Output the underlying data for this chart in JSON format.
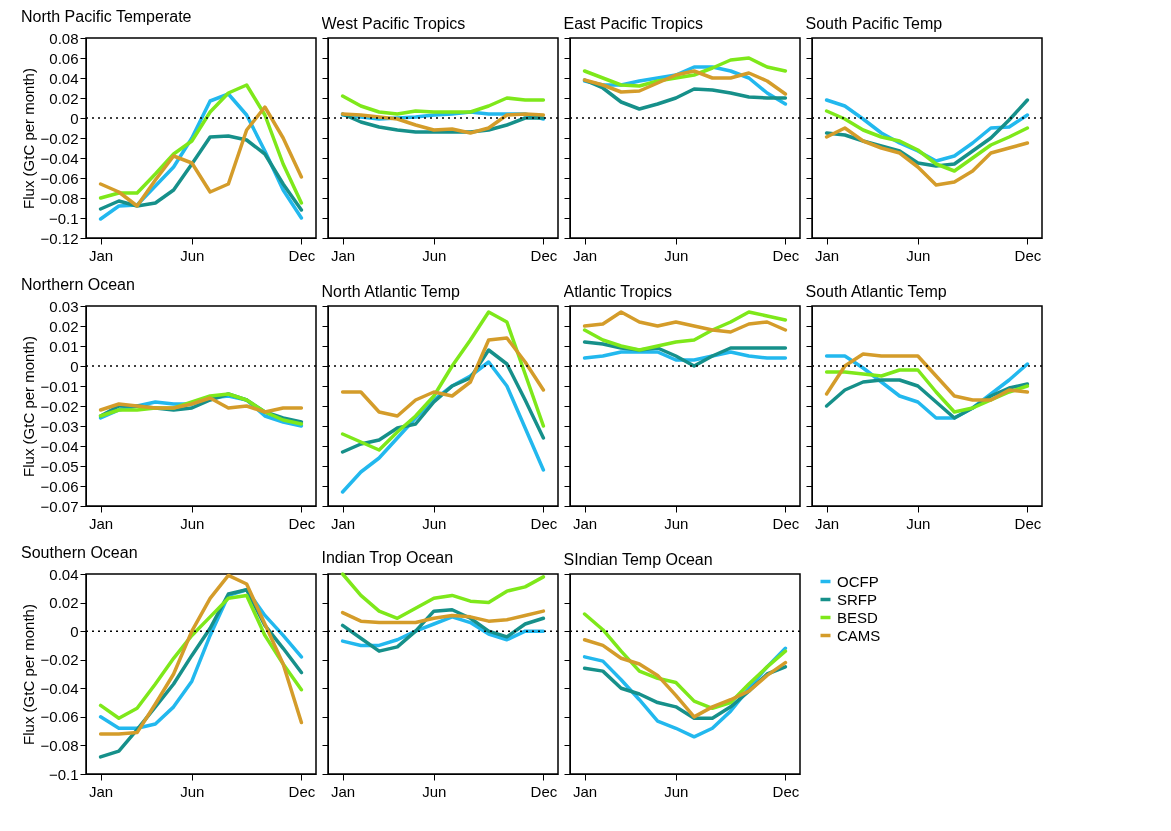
{
  "chart_data": [
    {
      "type": "line",
      "title": "North Pacific Temperate",
      "ylabel": "Flux (GtC per month)",
      "categories": [
        "Jan",
        null,
        null,
        null,
        null,
        "Jun",
        null,
        null,
        null,
        null,
        null,
        "Dec"
      ],
      "ylim": [
        -0.12,
        0.08
      ],
      "yticks": [
        -0.12,
        -0.1,
        -0.08,
        -0.06,
        -0.04,
        -0.02,
        0,
        0.02,
        0.04,
        0.06,
        0.08
      ],
      "ref_lines": [
        {
          "axis": "y",
          "value": 0,
          "line_style": "dotted"
        }
      ],
      "series": [
        {
          "color": "#22b8ee",
          "values": [
            -0.101,
            -0.088,
            -0.087,
            -0.068,
            -0.049,
            -0.02,
            0.017,
            0.024,
            0.003,
            -0.033,
            -0.072,
            -0.1
          ]
        },
        {
          "color": "#16908a",
          "values": [
            -0.091,
            -0.083,
            -0.088,
            -0.085,
            -0.072,
            -0.046,
            -0.019,
            -0.018,
            -0.022,
            -0.036,
            -0.066,
            -0.092
          ]
        },
        {
          "color": "#7ee81a",
          "values": [
            -0.08,
            -0.075,
            -0.075,
            -0.056,
            -0.036,
            -0.023,
            0.006,
            0.025,
            0.033,
            0.003,
            -0.046,
            -0.085
          ]
        },
        {
          "color": "#d49c2a",
          "values": [
            -0.066,
            -0.074,
            -0.088,
            -0.062,
            -0.038,
            -0.045,
            -0.074,
            -0.066,
            -0.012,
            0.011,
            -0.02,
            -0.059
          ]
        }
      ]
    },
    {
      "type": "line",
      "title": "West Pacific Tropics",
      "categories": [
        "Jan",
        null,
        null,
        null,
        null,
        "Jun",
        null,
        null,
        null,
        null,
        null,
        "Dec"
      ],
      "ylim": [
        -0.12,
        0.08
      ],
      "yticks": [
        -0.12,
        -0.1,
        -0.08,
        -0.06,
        -0.04,
        -0.02,
        0,
        0.02,
        0.04,
        0.06,
        0.08
      ],
      "tick_labels": "x",
      "ref_lines": [
        {
          "axis": "y",
          "value": 0,
          "line_style": "dotted"
        }
      ],
      "series": [
        {
          "color": "#22b8ee",
          "values": [
            0.003,
            0.001,
            -0.001,
            0,
            0.001,
            0.003,
            0.004,
            0.006,
            0.004,
            0.004,
            0.004,
            -0.001
          ]
        },
        {
          "color": "#16908a",
          "values": [
            0.004,
            -0.004,
            -0.009,
            -0.012,
            -0.014,
            -0.014,
            -0.014,
            -0.014,
            -0.012,
            -0.007,
            0,
            0
          ]
        },
        {
          "color": "#7ee81a",
          "values": [
            0.022,
            0.012,
            0.006,
            0.004,
            0.007,
            0.006,
            0.006,
            0.006,
            0.012,
            0.02,
            0.018,
            0.018
          ]
        },
        {
          "color": "#d49c2a",
          "values": [
            0.004,
            0.003,
            0.001,
            -0.001,
            -0.007,
            -0.012,
            -0.011,
            -0.015,
            -0.01,
            0.003,
            0.004,
            0.003
          ]
        }
      ]
    },
    {
      "type": "line",
      "title": "East Pacific Tropics",
      "categories": [
        "Jan",
        null,
        null,
        null,
        null,
        "Jun",
        null,
        null,
        null,
        null,
        null,
        "Dec"
      ],
      "ylim": [
        -0.12,
        0.08
      ],
      "yticks": [
        -0.12,
        -0.1,
        -0.08,
        -0.06,
        -0.04,
        -0.02,
        0,
        0.02,
        0.04,
        0.06,
        0.08
      ],
      "tick_labels": "x",
      "ref_lines": [
        {
          "axis": "y",
          "value": 0,
          "line_style": "dotted"
        }
      ],
      "series": [
        {
          "color": "#22b8ee",
          "values": [
            0.037,
            0.033,
            0.033,
            0.037,
            0.04,
            0.043,
            0.051,
            0.051,
            0.047,
            0.04,
            0.025,
            0.014
          ]
        },
        {
          "color": "#16908a",
          "values": [
            0.038,
            0.03,
            0.016,
            0.009,
            0.014,
            0.02,
            0.029,
            0.028,
            0.025,
            0.021,
            0.02,
            0.02
          ]
        },
        {
          "color": "#7ee81a",
          "values": [
            0.047,
            0.04,
            0.033,
            0.032,
            0.037,
            0.04,
            0.043,
            0.05,
            0.058,
            0.06,
            0.051,
            0.047
          ]
        },
        {
          "color": "#d49c2a",
          "values": [
            0.038,
            0.033,
            0.026,
            0.027,
            0.035,
            0.043,
            0.047,
            0.04,
            0.04,
            0.045,
            0.037,
            0.024
          ]
        }
      ]
    },
    {
      "type": "line",
      "title": "South Pacific Temp",
      "categories": [
        "Jan",
        null,
        null,
        null,
        null,
        "Jun",
        null,
        null,
        null,
        null,
        null,
        "Dec"
      ],
      "ylim": [
        -0.12,
        0.08
      ],
      "yticks": [
        -0.12,
        -0.1,
        -0.08,
        -0.06,
        -0.04,
        -0.02,
        0,
        0.02,
        0.04,
        0.06,
        0.08
      ],
      "tick_labels": "x",
      "ref_lines": [
        {
          "axis": "y",
          "value": 0,
          "line_style": "dotted"
        }
      ],
      "series": [
        {
          "color": "#22b8ee",
          "values": [
            0.018,
            0.012,
            -0.001,
            -0.015,
            -0.025,
            -0.033,
            -0.043,
            -0.038,
            -0.025,
            -0.01,
            -0.009,
            0.003
          ]
        },
        {
          "color": "#16908a",
          "values": [
            -0.015,
            -0.017,
            -0.023,
            -0.028,
            -0.033,
            -0.045,
            -0.048,
            -0.046,
            -0.033,
            -0.02,
            -0.002,
            0.018
          ]
        },
        {
          "color": "#7ee81a",
          "values": [
            0.007,
            -0.001,
            -0.012,
            -0.019,
            -0.023,
            -0.032,
            -0.046,
            -0.053,
            -0.04,
            -0.027,
            -0.019,
            -0.01
          ]
        },
        {
          "color": "#d49c2a",
          "values": [
            -0.019,
            -0.01,
            -0.023,
            -0.03,
            -0.035,
            -0.049,
            -0.067,
            -0.064,
            -0.053,
            -0.035,
            -0.03,
            -0.025
          ]
        }
      ]
    },
    {
      "type": "line",
      "title": "Northern Ocean",
      "ylabel": "Flux (GtC per month)",
      "categories": [
        "Jan",
        null,
        null,
        null,
        null,
        "Jun",
        null,
        null,
        null,
        null,
        null,
        "Dec"
      ],
      "ylim": [
        -0.07,
        0.03
      ],
      "yticks": [
        -0.07,
        -0.06,
        -0.05,
        -0.04,
        -0.03,
        -0.02,
        -0.01,
        0,
        0.01,
        0.02,
        0.03
      ],
      "ref_lines": [
        {
          "axis": "y",
          "value": 0,
          "line_style": "dotted"
        }
      ],
      "series": [
        {
          "color": "#22b8ee",
          "values": [
            -0.026,
            -0.022,
            -0.02,
            -0.018,
            -0.019,
            -0.019,
            -0.016,
            -0.015,
            -0.017,
            -0.025,
            -0.028,
            -0.03
          ]
        },
        {
          "color": "#16908a",
          "values": [
            -0.025,
            -0.02,
            -0.02,
            -0.021,
            -0.022,
            -0.021,
            -0.017,
            -0.014,
            -0.017,
            -0.023,
            -0.026,
            -0.028
          ]
        },
        {
          "color": "#7ee81a",
          "values": [
            -0.025,
            -0.022,
            -0.022,
            -0.021,
            -0.021,
            -0.018,
            -0.015,
            -0.014,
            -0.017,
            -0.023,
            -0.027,
            -0.029
          ]
        },
        {
          "color": "#d49c2a",
          "values": [
            -0.022,
            -0.019,
            -0.02,
            -0.021,
            -0.021,
            -0.019,
            -0.016,
            -0.021,
            -0.02,
            -0.023,
            -0.021,
            -0.021
          ]
        }
      ]
    },
    {
      "type": "line",
      "title": "North Atlantic Temp",
      "categories": [
        "Jan",
        null,
        null,
        null,
        null,
        "Jun",
        null,
        null,
        null,
        null,
        null,
        "Dec"
      ],
      "ylim": [
        -0.07,
        0.03
      ],
      "yticks": [
        -0.07,
        -0.06,
        -0.05,
        -0.04,
        -0.03,
        -0.02,
        -0.01,
        0,
        0.01,
        0.02,
        0.03
      ],
      "tick_labels": "x",
      "ref_lines": [
        {
          "axis": "y",
          "value": 0,
          "line_style": "dotted"
        }
      ],
      "series": [
        {
          "color": "#22b8ee",
          "values": [
            -0.063,
            -0.053,
            -0.046,
            -0.036,
            -0.026,
            -0.017,
            -0.01,
            -0.005,
            0.002,
            -0.01,
            -0.031,
            -0.052
          ]
        },
        {
          "color": "#16908a",
          "values": [
            -0.043,
            -0.039,
            -0.037,
            -0.031,
            -0.029,
            -0.018,
            -0.01,
            -0.006,
            0.008,
            0.001,
            -0.017,
            -0.036
          ]
        },
        {
          "color": "#7ee81a",
          "values": [
            -0.034,
            -0.038,
            -0.042,
            -0.033,
            -0.025,
            -0.015,
            0,
            0.013,
            0.027,
            0.022,
            -0.004,
            -0.03
          ]
        },
        {
          "color": "#d49c2a",
          "values": [
            -0.013,
            -0.013,
            -0.023,
            -0.025,
            -0.017,
            -0.013,
            -0.015,
            -0.008,
            0.013,
            0.014,
            0.002,
            -0.012
          ]
        }
      ]
    },
    {
      "type": "line",
      "title": "Atlantic Tropics",
      "categories": [
        "Jan",
        null,
        null,
        null,
        null,
        "Jun",
        null,
        null,
        null,
        null,
        null,
        "Dec"
      ],
      "ylim": [
        -0.07,
        0.03
      ],
      "yticks": [
        -0.07,
        -0.06,
        -0.05,
        -0.04,
        -0.03,
        -0.02,
        -0.01,
        0,
        0.01,
        0.02,
        0.03
      ],
      "tick_labels": "x",
      "ref_lines": [
        {
          "axis": "y",
          "value": 0,
          "line_style": "dotted"
        }
      ],
      "series": [
        {
          "color": "#22b8ee",
          "values": [
            0.004,
            0.005,
            0.007,
            0.007,
            0.007,
            0.003,
            0.003,
            0.005,
            0.007,
            0.005,
            0.004,
            0.004
          ]
        },
        {
          "color": "#16908a",
          "values": [
            0.012,
            0.011,
            0.009,
            0.008,
            0.009,
            0.005,
            0,
            0.005,
            0.009,
            0.009,
            0.009,
            0.009
          ]
        },
        {
          "color": "#7ee81a",
          "values": [
            0.018,
            0.013,
            0.01,
            0.008,
            0.01,
            0.012,
            0.013,
            0.018,
            0.022,
            0.027,
            0.025,
            0.023
          ]
        },
        {
          "color": "#d49c2a",
          "values": [
            0.02,
            0.021,
            0.027,
            0.022,
            0.02,
            0.022,
            0.02,
            0.018,
            0.017,
            0.021,
            0.022,
            0.018
          ]
        }
      ]
    },
    {
      "type": "line",
      "title": "South Atlantic Temp",
      "categories": [
        "Jan",
        null,
        null,
        null,
        null,
        "Jun",
        null,
        null,
        null,
        null,
        null,
        "Dec"
      ],
      "ylim": [
        -0.07,
        0.03
      ],
      "yticks": [
        -0.07,
        -0.06,
        -0.05,
        -0.04,
        -0.03,
        -0.02,
        -0.01,
        0,
        0.01,
        0.02,
        0.03
      ],
      "tick_labels": "x",
      "ref_lines": [
        {
          "axis": "y",
          "value": 0,
          "line_style": "dotted"
        }
      ],
      "series": [
        {
          "color": "#22b8ee",
          "values": [
            0.005,
            0.005,
            -0.001,
            -0.008,
            -0.015,
            -0.018,
            -0.026,
            -0.026,
            -0.021,
            -0.014,
            -0.007,
            0.001
          ]
        },
        {
          "color": "#16908a",
          "values": [
            -0.02,
            -0.012,
            -0.008,
            -0.007,
            -0.007,
            -0.01,
            -0.018,
            -0.026,
            -0.021,
            -0.015,
            -0.011,
            -0.009
          ]
        },
        {
          "color": "#7ee81a",
          "values": [
            -0.003,
            -0.003,
            -0.004,
            -0.005,
            -0.002,
            -0.002,
            -0.013,
            -0.023,
            -0.021,
            -0.017,
            -0.013,
            -0.01
          ]
        },
        {
          "color": "#d49c2a",
          "values": [
            -0.014,
            0,
            0.006,
            0.005,
            0.005,
            0.005,
            -0.005,
            -0.015,
            -0.017,
            -0.017,
            -0.012,
            -0.013
          ]
        }
      ]
    },
    {
      "type": "line",
      "title": "Southern Ocean",
      "ylabel": "Flux (GtC per month)",
      "categories": [
        "Jan",
        null,
        null,
        null,
        null,
        "Jun",
        null,
        null,
        null,
        null,
        null,
        "Dec"
      ],
      "ylim": [
        -0.1,
        0.04
      ],
      "yticks": [
        -0.1,
        -0.08,
        -0.06,
        -0.04,
        -0.02,
        0,
        0.02,
        0.04
      ],
      "ref_lines": [
        {
          "axis": "y",
          "value": 0,
          "line_style": "dotted"
        }
      ],
      "series": [
        {
          "color": "#22b8ee",
          "values": [
            -0.06,
            -0.068,
            -0.068,
            -0.065,
            -0.053,
            -0.035,
            -0.003,
            0.025,
            0.029,
            0.011,
            -0.003,
            -0.018
          ]
        },
        {
          "color": "#16908a",
          "values": [
            -0.088,
            -0.084,
            -0.069,
            -0.053,
            -0.037,
            -0.017,
            0.002,
            0.026,
            0.029,
            0.004,
            -0.012,
            -0.029
          ]
        },
        {
          "color": "#7ee81a",
          "values": [
            -0.052,
            -0.061,
            -0.054,
            -0.037,
            -0.019,
            -0.003,
            0.01,
            0.023,
            0.025,
            -0.003,
            -0.023,
            -0.041
          ]
        },
        {
          "color": "#d49c2a",
          "values": [
            -0.072,
            -0.072,
            -0.071,
            -0.051,
            -0.03,
            0,
            0.023,
            0.039,
            0.033,
            0.005,
            -0.023,
            -0.064
          ]
        }
      ]
    },
    {
      "type": "line",
      "title": "Indian Trop Ocean",
      "categories": [
        "Jan",
        null,
        null,
        null,
        null,
        "Jun",
        null,
        null,
        null,
        null,
        null,
        "Dec"
      ],
      "ylim": [
        -0.1,
        0.04
      ],
      "yticks": [
        -0.1,
        -0.08,
        -0.06,
        -0.04,
        -0.02,
        0,
        0.02,
        0.04
      ],
      "tick_labels": "x",
      "ref_lines": [
        {
          "axis": "y",
          "value": 0,
          "line_style": "dotted"
        }
      ],
      "series": [
        {
          "color": "#22b8ee",
          "values": [
            -0.007,
            -0.01,
            -0.01,
            -0.006,
            0,
            0.005,
            0.01,
            0.006,
            -0.002,
            -0.006,
            0,
            0
          ]
        },
        {
          "color": "#16908a",
          "values": [
            0.004,
            -0.005,
            -0.014,
            -0.011,
            0,
            0.014,
            0.015,
            0.009,
            0,
            -0.004,
            0.005,
            0.009
          ]
        },
        {
          "color": "#7ee81a",
          "values": [
            0.04,
            0.025,
            0.014,
            0.009,
            0.016,
            0.023,
            0.025,
            0.021,
            0.02,
            0.028,
            0.031,
            0.038
          ]
        },
        {
          "color": "#d49c2a",
          "values": [
            0.013,
            0.007,
            0.006,
            0.006,
            0.006,
            0.009,
            0.011,
            0.01,
            0.007,
            0.008,
            0.011,
            0.014
          ]
        }
      ]
    },
    {
      "type": "line",
      "title": "SIndian Temp Ocean",
      "categories": [
        "Jan",
        null,
        null,
        null,
        null,
        "Jun",
        null,
        null,
        null,
        null,
        null,
        "Dec"
      ],
      "ylim": [
        -0.1,
        0.04
      ],
      "yticks": [
        -0.1,
        -0.08,
        -0.06,
        -0.04,
        -0.02,
        0,
        0.02,
        0.04
      ],
      "tick_labels": "x",
      "legend": "right",
      "ref_lines": [
        {
          "axis": "y",
          "value": 0,
          "line_style": "dotted"
        }
      ],
      "series": [
        {
          "name": "OCFP",
          "color": "#22b8ee",
          "values": [
            -0.018,
            -0.021,
            -0.034,
            -0.048,
            -0.063,
            -0.068,
            -0.074,
            -0.068,
            -0.056,
            -0.04,
            -0.025,
            -0.012
          ]
        },
        {
          "name": "SRFP",
          "color": "#16908a",
          "values": [
            -0.026,
            -0.028,
            -0.04,
            -0.044,
            -0.05,
            -0.053,
            -0.061,
            -0.061,
            -0.053,
            -0.042,
            -0.03,
            -0.025
          ]
        },
        {
          "name": "BESD",
          "color": "#7ee81a",
          "values": [
            0.012,
            0.001,
            -0.014,
            -0.028,
            -0.033,
            -0.036,
            -0.049,
            -0.054,
            -0.05,
            -0.037,
            -0.025,
            -0.014
          ]
        },
        {
          "name": "CAMS",
          "color": "#d49c2a",
          "values": [
            -0.006,
            -0.01,
            -0.019,
            -0.023,
            -0.031,
            -0.045,
            -0.06,
            -0.053,
            -0.048,
            -0.042,
            -0.031,
            -0.022
          ]
        }
      ]
    }
  ]
}
